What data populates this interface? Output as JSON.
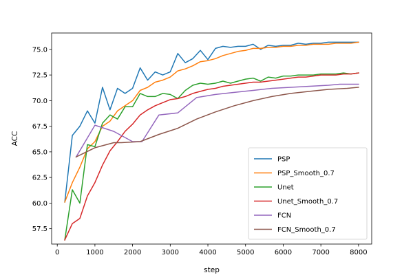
{
  "chart_data": {
    "type": "line",
    "xlabel": "step",
    "ylabel": "ACC",
    "xlim": [
      -150,
      8350
    ],
    "ylim": [
      56.0,
      76.6
    ],
    "xticks": [
      "0",
      "1000",
      "2000",
      "3000",
      "4000",
      "5000",
      "6000",
      "7000",
      "8000"
    ],
    "xtick_values": [
      0,
      1000,
      2000,
      3000,
      4000,
      5000,
      6000,
      7000,
      8000
    ],
    "yticks": [
      "57.5",
      "60.0",
      "62.5",
      "65.0",
      "67.5",
      "70.0",
      "72.5",
      "75.0"
    ],
    "ytick_values": [
      57.5,
      60.0,
      62.5,
      65.0,
      67.5,
      70.0,
      72.5,
      75.0
    ],
    "grid": false,
    "legend_position": "lower-right",
    "series": [
      {
        "name": "PSP",
        "color": "#1f77b4",
        "x": [
          200,
          400,
          600,
          800,
          1000,
          1200,
          1400,
          1600,
          1800,
          2000,
          2200,
          2400,
          2600,
          2800,
          3000,
          3200,
          3400,
          3600,
          3800,
          4000,
          4200,
          4400,
          4600,
          4800,
          5000,
          5200,
          5400,
          5600,
          5800,
          6000,
          6200,
          6400,
          6600,
          6800,
          7000,
          7200,
          7400,
          7600,
          7800,
          8000
        ],
        "y": [
          60.1,
          66.6,
          67.5,
          69.0,
          67.8,
          71.3,
          69.1,
          71.2,
          70.7,
          71.2,
          73.2,
          72.0,
          72.8,
          72.5,
          72.8,
          74.6,
          73.7,
          74.1,
          74.9,
          74.0,
          75.1,
          75.3,
          75.2,
          75.3,
          75.3,
          75.5,
          75.0,
          75.4,
          75.3,
          75.4,
          75.4,
          75.6,
          75.5,
          75.6,
          75.6,
          75.7,
          75.7,
          75.7,
          75.7,
          75.7
        ]
      },
      {
        "name": "PSP_Smooth_0.7",
        "color": "#ff7f0e",
        "x": [
          200,
          400,
          600,
          800,
          1000,
          1200,
          1400,
          1600,
          1800,
          2000,
          2200,
          2400,
          2600,
          2800,
          3000,
          3200,
          3400,
          3600,
          3800,
          4000,
          4200,
          4400,
          4600,
          4800,
          5000,
          5200,
          5400,
          5600,
          5800,
          6000,
          6200,
          6400,
          6600,
          6800,
          7000,
          7200,
          7400,
          7600,
          7800,
          8000
        ],
        "y": [
          60.1,
          62.0,
          63.5,
          65.3,
          66.0,
          67.5,
          68.0,
          69.0,
          69.5,
          70.0,
          71.0,
          71.3,
          71.8,
          72.0,
          72.3,
          72.9,
          73.1,
          73.4,
          73.8,
          73.9,
          74.1,
          74.4,
          74.6,
          74.8,
          74.9,
          75.1,
          75.1,
          75.2,
          75.2,
          75.3,
          75.3,
          75.4,
          75.4,
          75.5,
          75.5,
          75.5,
          75.6,
          75.6,
          75.6,
          75.7
        ]
      },
      {
        "name": "Unet",
        "color": "#2ca02c",
        "x": [
          200,
          400,
          600,
          800,
          1000,
          1200,
          1400,
          1600,
          1800,
          2000,
          2200,
          2400,
          2600,
          2800,
          3000,
          3200,
          3400,
          3600,
          3800,
          4000,
          4200,
          4400,
          4600,
          4800,
          5000,
          5200,
          5400,
          5600,
          5800,
          6000,
          6200,
          6400,
          6600,
          6800,
          7000,
          7200,
          7400,
          7600,
          7800,
          8000
        ],
        "y": [
          56.4,
          61.3,
          60.0,
          65.7,
          65.5,
          67.8,
          68.6,
          68.2,
          69.4,
          69.4,
          70.7,
          70.4,
          70.4,
          70.7,
          70.6,
          70.2,
          71.0,
          71.5,
          71.7,
          71.6,
          71.7,
          71.9,
          71.7,
          71.9,
          72.1,
          72.2,
          71.9,
          72.3,
          72.2,
          72.4,
          72.4,
          72.5,
          72.5,
          72.5,
          72.6,
          72.6,
          72.6,
          72.7,
          72.6,
          72.7
        ]
      },
      {
        "name": "Unet_Smooth_0.7",
        "color": "#d62728",
        "x": [
          200,
          400,
          600,
          800,
          1000,
          1200,
          1400,
          1600,
          1800,
          2000,
          2200,
          2400,
          2600,
          2800,
          3000,
          3200,
          3400,
          3600,
          3800,
          4000,
          4200,
          4400,
          4600,
          4800,
          5000,
          5200,
          5400,
          5600,
          5800,
          6000,
          6200,
          6400,
          6600,
          6800,
          7000,
          7200,
          7400,
          7600,
          7800,
          8000
        ],
        "y": [
          56.4,
          58.0,
          58.5,
          60.7,
          62.0,
          63.7,
          65.1,
          66.0,
          67.0,
          67.7,
          68.6,
          69.1,
          69.5,
          69.8,
          70.1,
          70.2,
          70.4,
          70.7,
          70.9,
          71.1,
          71.2,
          71.4,
          71.5,
          71.6,
          71.7,
          71.8,
          71.8,
          71.9,
          72.0,
          72.1,
          72.2,
          72.3,
          72.3,
          72.4,
          72.5,
          72.5,
          72.5,
          72.6,
          72.6,
          72.7
        ]
      },
      {
        "name": "FCN",
        "color": "#9467bd",
        "x": [
          500,
          1000,
          1500,
          2000,
          2250,
          2700,
          3200,
          3700,
          4200,
          4700,
          5200,
          5700,
          6200,
          6700,
          7200,
          7500,
          8000
        ],
        "y": [
          64.5,
          67.6,
          67.0,
          66.0,
          66.0,
          68.6,
          68.8,
          70.3,
          70.6,
          70.8,
          71.0,
          71.2,
          71.3,
          71.4,
          71.5,
          71.6,
          71.6
        ]
      },
      {
        "name": "FCN_Smooth_0.7",
        "color": "#8c564b",
        "x": [
          500,
          1000,
          1500,
          1700,
          2200,
          2700,
          3200,
          3700,
          4200,
          4700,
          5200,
          5700,
          6200,
          6700,
          7200,
          7700,
          8000
        ],
        "y": [
          64.5,
          65.4,
          65.9,
          65.9,
          66.0,
          66.7,
          67.3,
          68.2,
          68.9,
          69.5,
          70.0,
          70.4,
          70.7,
          70.9,
          71.1,
          71.2,
          71.3
        ]
      }
    ]
  }
}
